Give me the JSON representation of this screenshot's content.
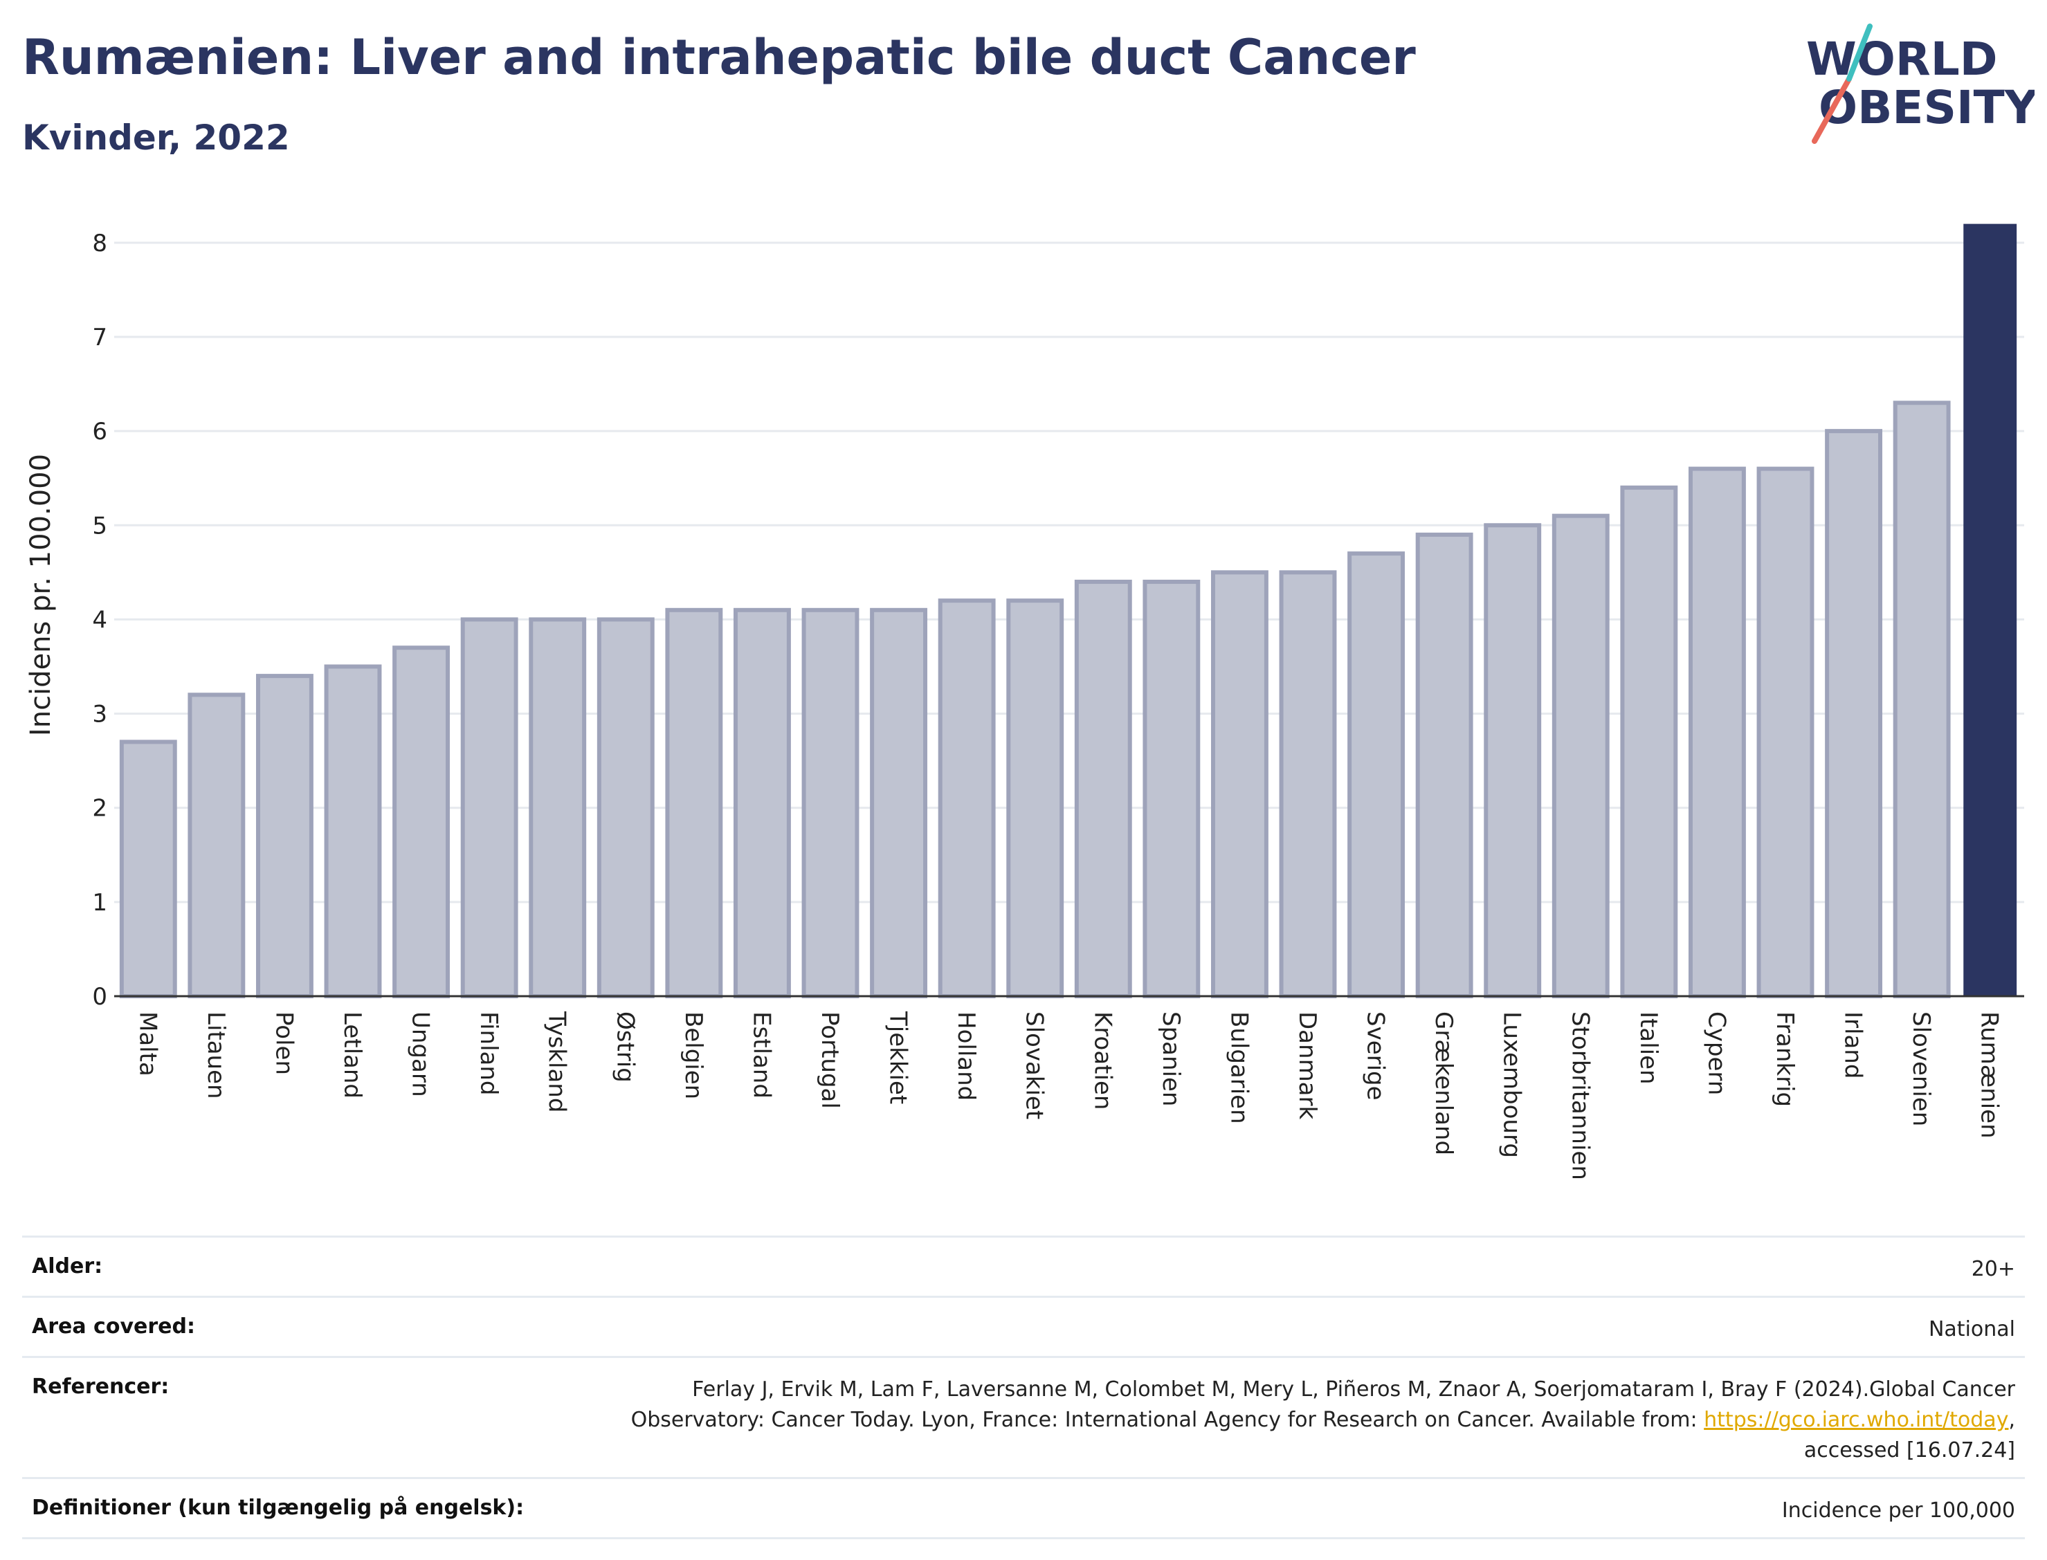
{
  "header": {
    "title": "Rumænien: Liver and intrahepatic bile duct Cancer",
    "subtitle": "Kvinder, 2022"
  },
  "logo": {
    "line1": "WORLD",
    "line2": "OBESITY"
  },
  "colors": {
    "title": "#2b3561",
    "highlight_bar": "#2b3561",
    "other_bar_fill": "#bfc3d1",
    "other_bar_stroke": "#9ea3ba",
    "logo_teal": "#3fbfbf",
    "logo_red": "#e8685a",
    "link": "#e0a800"
  },
  "chart_data": {
    "type": "bar",
    "title": "Rumænien: Liver and intrahepatic bile duct Cancer",
    "subtitle": "Kvinder, 2022",
    "ylabel": "Incidens pr. 100.000",
    "xlabel": "",
    "ylim": [
      0,
      8.3
    ],
    "yticks": [
      0,
      1,
      2,
      3,
      4,
      5,
      6,
      7,
      8
    ],
    "grid": true,
    "highlight": "Rumænien",
    "categories": [
      "Malta",
      "Litauen",
      "Polen",
      "Letland",
      "Ungarn",
      "Finland",
      "Tyskland",
      "Østrig",
      "Belgien",
      "Estland",
      "Portugal",
      "Tjekkiet",
      "Holland",
      "Slovakiet",
      "Kroatien",
      "Spanien",
      "Bulgarien",
      "Danmark",
      "Sverige",
      "Grækenland",
      "Luxembourg",
      "Storbritannien",
      "Italien",
      "Cypern",
      "Frankrig",
      "Irland",
      "Slovenien",
      "Rumænien"
    ],
    "values": [
      2.7,
      3.2,
      3.4,
      3.5,
      3.7,
      4.0,
      4.0,
      4.0,
      4.1,
      4.1,
      4.1,
      4.1,
      4.2,
      4.2,
      4.4,
      4.4,
      4.5,
      4.5,
      4.7,
      4.9,
      5.0,
      5.1,
      5.4,
      5.6,
      5.6,
      6.0,
      6.3,
      8.2
    ]
  },
  "info": {
    "rows": [
      {
        "label": "Alder:",
        "value": "20+"
      },
      {
        "label": "Area covered:",
        "value": "National"
      },
      {
        "label": "Referencer:",
        "value_line1": "Ferlay J, Ervik M, Lam F, Laversanne M, Colombet M, Mery L, Piñeros M, Znaor A, Soerjomataram I, Bray F (2024).Global Cancer",
        "value_line2_pre": "Observatory: Cancer Today. Lyon, France: International Agency for Research on Cancer. Available from: ",
        "link": "https://gco.iarc.who.int/today",
        "value_line2_post": ",",
        "value_line3": "accessed [16.07.24]"
      },
      {
        "label": "Definitioner (kun tilgængelig på engelsk):",
        "value": "Incidence per 100,000"
      }
    ]
  }
}
